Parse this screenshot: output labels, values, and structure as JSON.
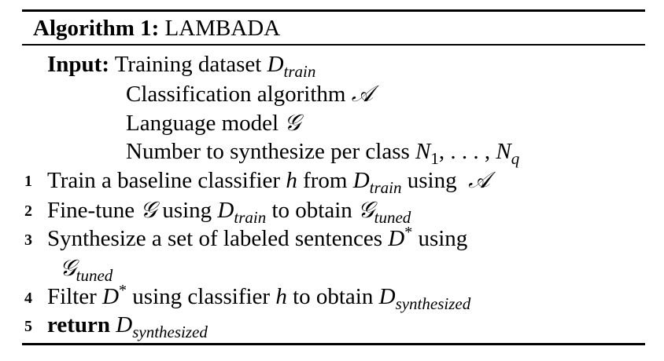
{
  "algorithm": {
    "heading": "Algorithm 1:",
    "name": "LAMBADA"
  },
  "input": {
    "label": "Input:",
    "items": [
      {
        "text": "Training dataset ",
        "symbol": "D",
        "sub": "train"
      },
      {
        "text": "Classification algorithm ",
        "symbol": "𝒜"
      },
      {
        "text": "Language model ",
        "symbol": "𝒢"
      },
      {
        "text": "Number to synthesize per class ",
        "symbol": "N",
        "sub1": "1",
        "mid": ", . . . , ",
        "symbol2": "N",
        "sub2": "q"
      }
    ]
  },
  "steps": [
    {
      "num": "1",
      "t1": "Train a baseline classifier ",
      "h": "h",
      "t2": " from ",
      "D": "D",
      "Dsub": "train",
      "t3": " using ",
      "A": "𝒜"
    },
    {
      "num": "2",
      "t1": "Fine-tune ",
      "G": "𝒢",
      "t2": " using ",
      "D": "D",
      "Dsub": "train",
      "t3": " to obtain ",
      "G2": "𝒢",
      "G2sub": "tuned"
    },
    {
      "num": "3",
      "t1": "Synthesize a set of labeled sentences ",
      "D": "D",
      "star": "*",
      "t2": " using",
      "G": "𝒢",
      "Gsub": "tuned"
    },
    {
      "num": "4",
      "t1": "Filter ",
      "D": "D",
      "star": "*",
      "t2": " using classifier ",
      "h": "h",
      "t3": " to obtain ",
      "D2": "D",
      "D2sub": "synthesized"
    },
    {
      "num": "5",
      "kw": "return",
      "D": "D",
      "Dsub": "synthesized"
    }
  ]
}
